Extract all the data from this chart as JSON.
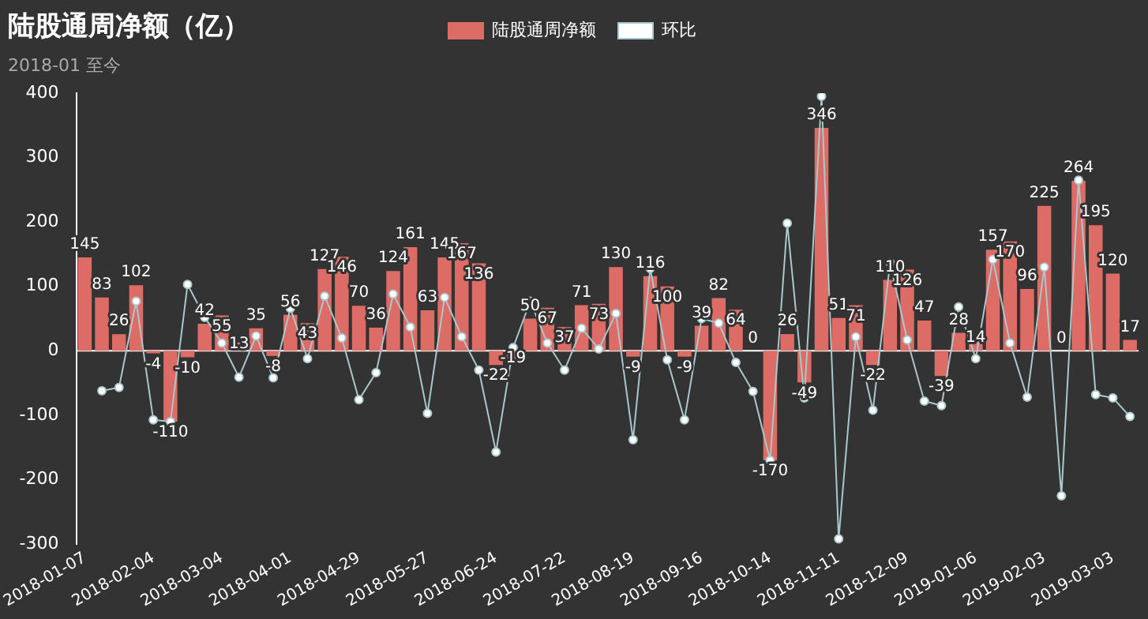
{
  "chart_data": {
    "type": "bar",
    "title": "陆股通周净额（亿）",
    "subtitle": "2018-01 至今",
    "categories": [
      "2018-01-07",
      null,
      null,
      null,
      "2018-02-04",
      null,
      null,
      null,
      "2018-03-04",
      null,
      null,
      null,
      "2018-04-01",
      null,
      null,
      null,
      "2018-04-29",
      null,
      null,
      null,
      "2018-05-27",
      null,
      null,
      null,
      "2018-06-24",
      null,
      null,
      null,
      "2018-07-22",
      null,
      null,
      null,
      "2018-08-19",
      null,
      null,
      null,
      "2018-09-16",
      null,
      null,
      null,
      "2018-10-14",
      null,
      null,
      null,
      "2018-11-11",
      null,
      null,
      null,
      "2018-12-09",
      null,
      null,
      null,
      "2019-01-06",
      null,
      null,
      null,
      "2019-02-03",
      null,
      null,
      null,
      "2019-03-03",
      null
    ],
    "series": [
      {
        "name": "陆股通周净额",
        "type": "bar",
        "color": "#dd6b66",
        "values": [
          145,
          83,
          26,
          102,
          -4,
          -110,
          -10,
          42,
          55,
          13,
          35,
          -8,
          56,
          43,
          127,
          146,
          70,
          36,
          124,
          161,
          63,
          145,
          167,
          136,
          -22,
          -19,
          50,
          67,
          37,
          71,
          73,
          130,
          -9,
          116,
          100,
          -9,
          39,
          82,
          64,
          0,
          -170,
          26,
          -49,
          346,
          51,
          71,
          -22,
          110,
          126,
          47,
          -39,
          28,
          14,
          157,
          170,
          96,
          225,
          0,
          264,
          195,
          120,
          17
        ],
        "value_labels": [
          "145",
          "83",
          "26",
          "102",
          "-4",
          "-110",
          "-10",
          "42",
          "55",
          "13",
          "35",
          "-8",
          "56",
          "43",
          "127",
          "146",
          "70",
          "36",
          "124",
          "161",
          "63",
          "145",
          "167",
          "136",
          "-22",
          "-19",
          "50",
          "67",
          "37",
          "71",
          "73",
          "130",
          "-9",
          "116",
          "100",
          "-9",
          "39",
          "82",
          "64",
          "0",
          "-170",
          "26",
          "-49",
          "346",
          "51",
          "71",
          "-22",
          "110",
          "126",
          "47",
          "-39",
          "28",
          "14",
          "157",
          "170",
          "96",
          "225",
          "0",
          "264",
          "195",
          "120",
          "17"
        ]
      },
      {
        "name": "环比",
        "type": "line",
        "color": "#a9c8cc",
        "marker": "circle",
        "line_style": "solid",
        "values": [
          null,
          -62,
          -57,
          77,
          -107,
          -110,
          103,
          52,
          12,
          -41,
          23,
          -42,
          66,
          -12,
          85,
          20,
          -76,
          -34,
          88,
          37,
          -97,
          83,
          22,
          -30,
          -157,
          5,
          77,
          12,
          -30,
          35,
          3,
          58,
          -138,
          128,
          -14,
          -107,
          50,
          43,
          -18,
          -63,
          -170,
          198,
          -73,
          395,
          -292,
          22,
          -92,
          137,
          17,
          -78,
          -85,
          68,
          -12,
          142,
          12,
          -72,
          130,
          -225,
          265,
          -68,
          -73,
          -102
        ]
      }
    ],
    "ylim": [
      -300,
      400
    ],
    "yticks": [
      -300,
      -200,
      -100,
      0,
      100,
      200,
      300,
      400
    ],
    "ref_lines": [
      {
        "axis": "y",
        "value": 0,
        "color": "#ffffff"
      }
    ],
    "grid": false,
    "legend": "top"
  }
}
